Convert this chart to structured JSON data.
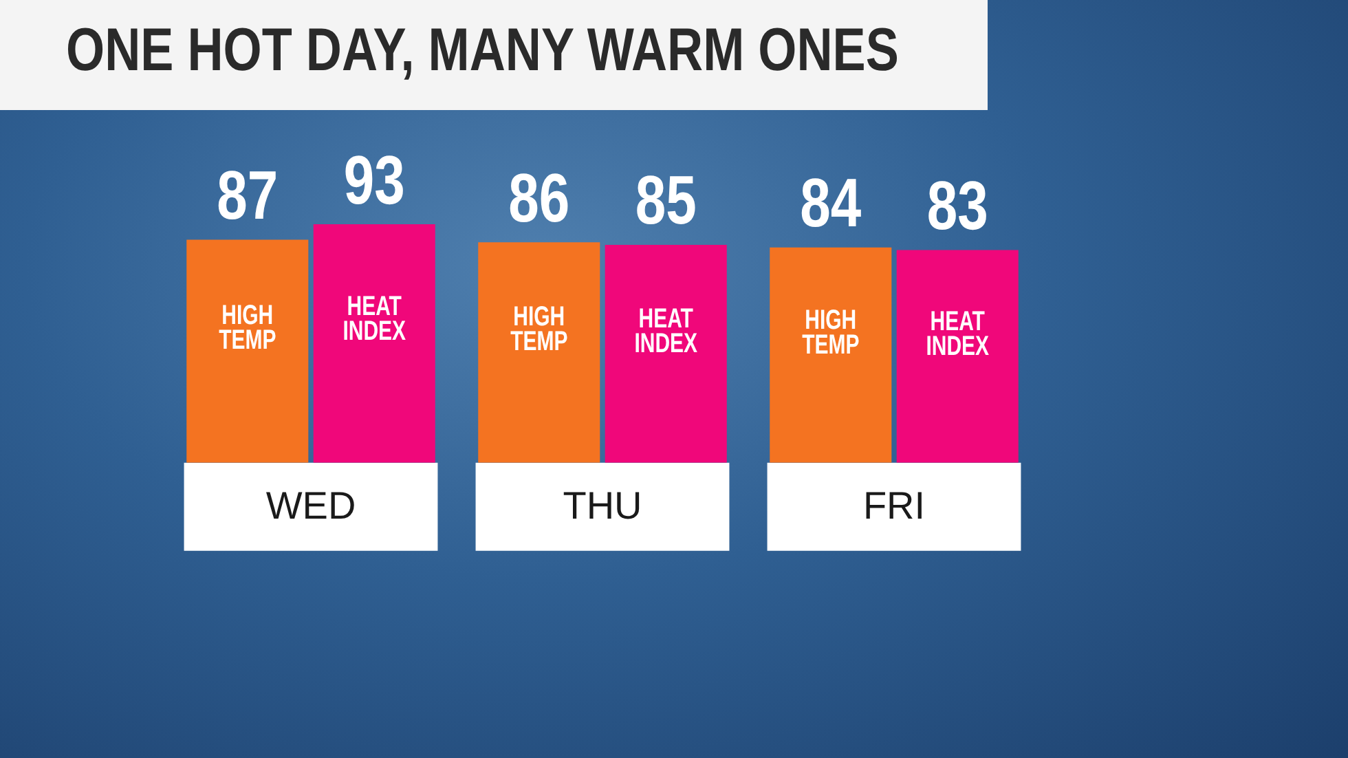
{
  "chart_data": {
    "type": "bar",
    "title": "ONE HOT DAY, MANY WARM ONES",
    "categories": [
      "WED",
      "THU",
      "FRI"
    ],
    "series": [
      {
        "name": "HIGH TEMP",
        "color": "#f47321",
        "values": [
          87,
          86,
          84
        ]
      },
      {
        "name": "HEAT INDEX",
        "color": "#f0077a",
        "values": [
          93,
          85,
          83
        ]
      }
    ],
    "tick_labels": "x",
    "data_labels": true,
    "legend": false,
    "grid": false
  }
}
